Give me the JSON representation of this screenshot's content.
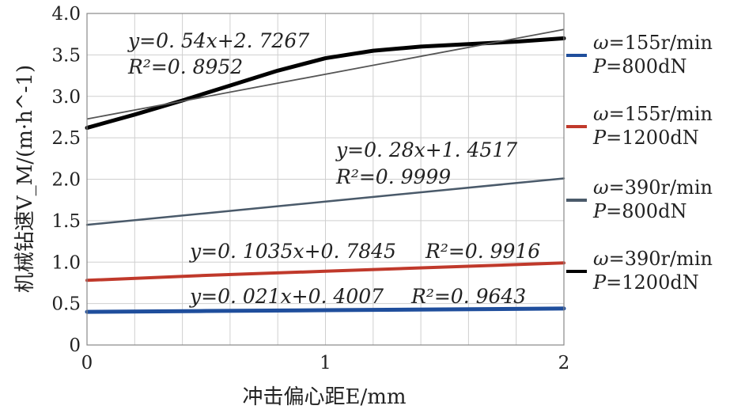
{
  "chart_data": {
    "type": "line",
    "xlabel": "冲击偏心距E/mm",
    "ylabel": "机械钻速V_M/(m·h^-1)",
    "xlim": [
      0,
      2
    ],
    "ylim": [
      0,
      4.0
    ],
    "x_ticks": [
      "0",
      "1",
      "2"
    ],
    "y_ticks": [
      "0",
      "0.5",
      "1.0",
      "1.5",
      "2.0",
      "2.5",
      "3.0",
      "3.5",
      "4.0"
    ],
    "grid": true,
    "legend_position": "right",
    "series": [
      {
        "name": "ω=155r/min P=800dN",
        "legend_line1": "ω=155r/min",
        "legend_line2": "P=800dN",
        "color": "#1f4e9c",
        "x": [
          0,
          0.5,
          1,
          1.5,
          2
        ],
        "y": [
          0.4,
          0.41,
          0.42,
          0.43,
          0.44
        ]
      },
      {
        "name": "ω=155r/min P=1200dN",
        "legend_line1": "ω=155r/min",
        "legend_line2": "P=1200dN",
        "color": "#c0392b",
        "x": [
          0,
          0.5,
          1,
          1.5,
          2
        ],
        "y": [
          0.78,
          0.84,
          0.89,
          0.94,
          0.99
        ]
      },
      {
        "name": "ω=390r/min P=800dN",
        "legend_line1": "ω=390r/min",
        "legend_line2": "P=800dN",
        "color": "#4a5a6a",
        "x": [
          0,
          0.5,
          1,
          1.5,
          2
        ],
        "y": [
          1.45,
          1.59,
          1.73,
          1.87,
          2.01
        ]
      },
      {
        "name": "ω=390r/min P=1200dN",
        "legend_line1": "ω=390r/min",
        "legend_line2": "P=1200dN",
        "color": "#000000",
        "x": [
          0,
          0.2,
          0.4,
          0.6,
          0.8,
          1.0,
          1.2,
          1.4,
          1.6,
          1.8,
          2.0
        ],
        "y": [
          2.62,
          2.78,
          2.95,
          3.13,
          3.31,
          3.46,
          3.55,
          3.6,
          3.63,
          3.66,
          3.7
        ]
      }
    ],
    "trendline": {
      "color": "#555555",
      "x": [
        0,
        2
      ],
      "y": [
        2.7267,
        3.8067
      ]
    },
    "annotations": {
      "a1_eq": "y=0. 54x+2. 7267",
      "a1_r2": "R²=0. 8952",
      "a2_eq": "y=0. 28x+1. 4517",
      "a2_r2": "R²=0. 9999",
      "a3_eq": "y=0. 1035x+0. 7845",
      "a3_r2": "R²=0. 9916",
      "a4_eq": "y=0. 021x+0. 4007",
      "a4_r2": "R²=0. 9643"
    }
  }
}
